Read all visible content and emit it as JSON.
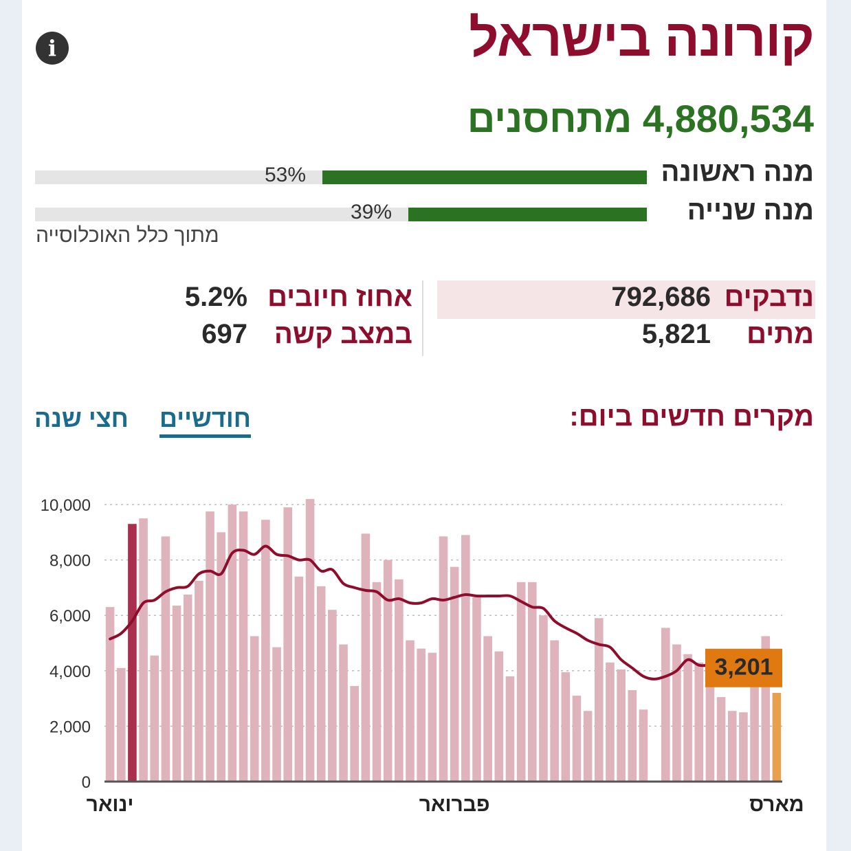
{
  "header": {
    "title": "קורונה בישראל"
  },
  "icons": {
    "info": "info-icon"
  },
  "vaccination": {
    "headline": "4,880,534 מתחסנים",
    "doses": [
      {
        "label": "מנה ראשונה",
        "percent": 53,
        "percent_label": "53%"
      },
      {
        "label": "מנה שנייה",
        "percent": 39,
        "percent_label": "39%"
      }
    ],
    "note": "מתוך כלל האוכלוסייה"
  },
  "stats": {
    "infected": {
      "label": "נדבקים",
      "value": "792,686"
    },
    "deaths": {
      "label": "מתים",
      "value": "5,821"
    },
    "positive_rate": {
      "label": "אחוז חיובים",
      "value": "5.2%"
    },
    "severe": {
      "label": "במצב קשה",
      "value": "697"
    }
  },
  "chart_section": {
    "title": "מקרים חדשים ביום:",
    "tabs": [
      {
        "label": "חודשיים",
        "active": true
      },
      {
        "label": "חצי שנה",
        "active": false
      }
    ]
  },
  "colors": {
    "brand": "#8f0d2c",
    "vaccine_green": "#2b7323",
    "bar": "#dfb3bb",
    "bar_highlight": "#a8304d",
    "latest": "#e8a04e",
    "callout": "#e07a10",
    "tab": "#1a6b8c"
  },
  "chart_data": {
    "type": "bar",
    "title": "מקרים חדשים ביום:",
    "xlabel": "",
    "ylabel": "",
    "ylim": [
      0,
      10000
    ],
    "yticks": [
      0,
      2000,
      4000,
      6000,
      8000,
      10000
    ],
    "ytick_labels": [
      "0",
      "2,000",
      "4,000",
      "6,000",
      "8,000",
      "10,000"
    ],
    "grid": true,
    "month_labels": [
      {
        "label": "ינואר",
        "index": 0
      },
      {
        "label": "פברואר",
        "index": 31
      },
      {
        "label": "מארס",
        "index": 60
      }
    ],
    "series": [
      {
        "type": "bar",
        "values": [
          6300,
          4100,
          9300,
          9500,
          4550,
          8850,
          6350,
          6750,
          7250,
          9750,
          9000,
          10000,
          9750,
          5250,
          9450,
          4850,
          9900,
          7400,
          10200,
          7050,
          6200,
          4950,
          3450,
          8950,
          7200,
          8000,
          7300,
          5100,
          4800,
          4650,
          8850,
          7750,
          8900,
          6650,
          5250,
          4700,
          3800,
          7200,
          7200,
          6000,
          5100,
          3950,
          3100,
          2550,
          5900,
          4300,
          4050,
          3300,
          2600,
          null,
          5550,
          4950,
          4600,
          4300,
          3950,
          3050,
          2550,
          2500,
          3900,
          5250,
          3201
        ],
        "highlight_index": 2,
        "latest_index": 60
      },
      {
        "type": "line",
        "values": [
          5150,
          5350,
          5800,
          6450,
          6550,
          6850,
          7000,
          7050,
          7500,
          7600,
          7500,
          8250,
          8350,
          8200,
          8500,
          8200,
          8150,
          8000,
          8000,
          7600,
          7650,
          7150,
          7000,
          6900,
          6850,
          6550,
          6600,
          6450,
          6450,
          6600,
          6550,
          6650,
          6750,
          6700,
          6700,
          6700,
          6700,
          6500,
          6300,
          6250,
          5800,
          5550,
          5350,
          5100,
          4950,
          4850,
          4400,
          4100,
          3800,
          3700,
          3800,
          4000,
          4400,
          4200,
          4200,
          4200,
          4150
        ]
      }
    ],
    "callout": {
      "label": "3,201",
      "value": 3201
    }
  }
}
